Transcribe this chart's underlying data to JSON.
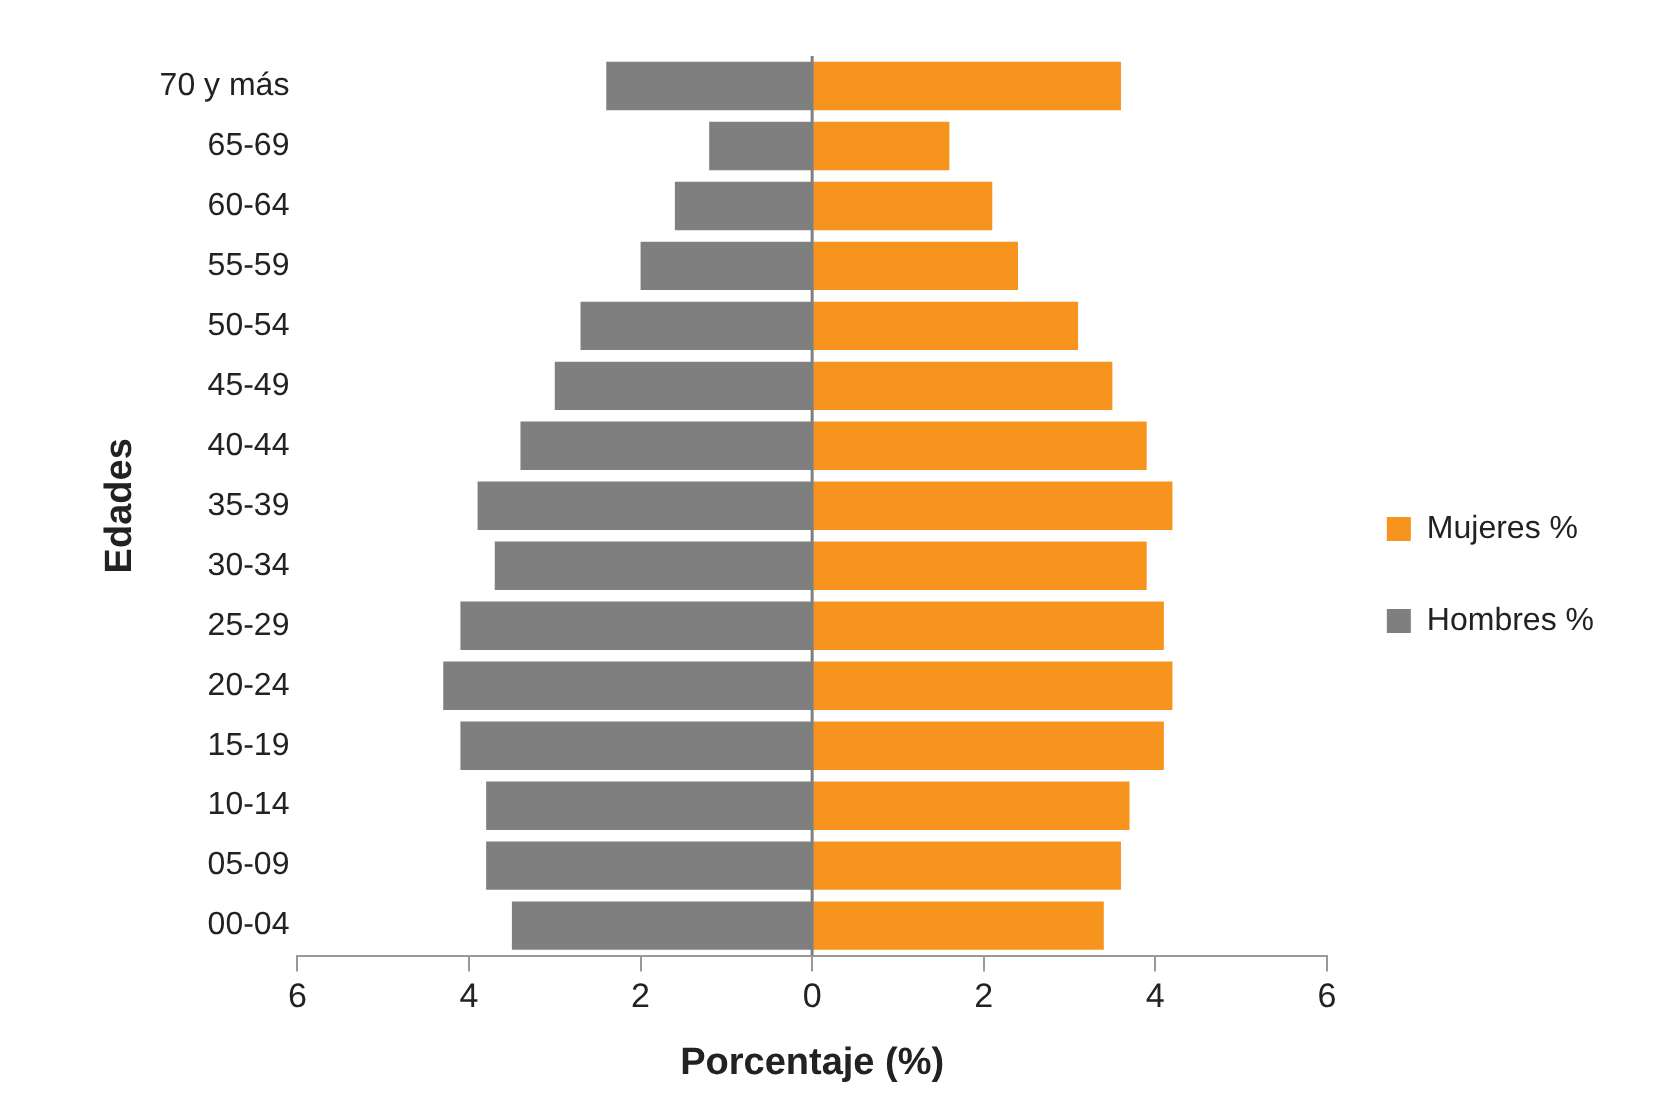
{
  "chart_data": {
    "type": "bar",
    "orientation": "horizontal",
    "stacked": true,
    "categories": [
      "70 y más",
      "65-69",
      "60-64",
      "55-59",
      "50-54",
      "45-49",
      "40-44",
      "35-39",
      "30-34",
      "25-29",
      "20-24",
      "15-19",
      "10-14",
      "05-09",
      "00-04"
    ],
    "series": [
      {
        "name": "Mujeres %",
        "color": "#f7941d",
        "values": [
          3.6,
          1.6,
          2.1,
          2.4,
          3.1,
          3.5,
          3.9,
          4.2,
          3.9,
          4.1,
          4.2,
          4.1,
          3.7,
          3.6,
          3.4
        ]
      },
      {
        "name": "Hombres %",
        "color": "#7f7f7f",
        "values": [
          -2.4,
          -1.2,
          -1.6,
          -2.0,
          -2.7,
          -3.0,
          -3.4,
          -3.9,
          -3.7,
          -4.1,
          -4.3,
          -4.1,
          -3.8,
          -3.8,
          -3.5
        ]
      }
    ],
    "xlim": [
      -6,
      6
    ],
    "xticks": [
      {
        "value": -6,
        "label": "6"
      },
      {
        "value": -4,
        "label": "4"
      },
      {
        "value": -2,
        "label": "2"
      },
      0,
      2,
      4,
      6
    ],
    "ref_lines": [
      {
        "axis": "x",
        "value": 0,
        "color": "#7f7f7f"
      }
    ],
    "xlabel": "Porcentaje (%)",
    "ylabel": "Edades",
    "legend": "right"
  }
}
